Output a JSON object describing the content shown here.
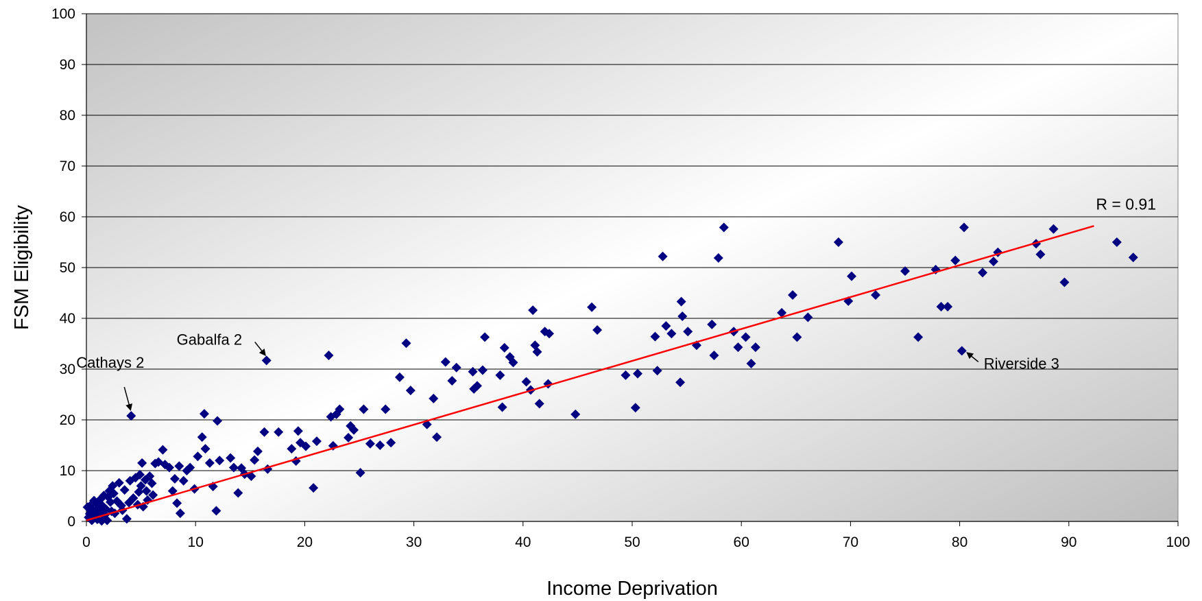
{
  "chart_data": {
    "type": "scatter",
    "title": "",
    "xlabel": "Income Deprivation",
    "ylabel": "FSM Eligibility",
    "xlim": [
      0,
      100
    ],
    "ylim": [
      0,
      100
    ],
    "xticks": [
      "0",
      "10",
      "20",
      "30",
      "40",
      "50",
      "60",
      "70",
      "80",
      "90",
      "100"
    ],
    "yticks": [
      "0",
      "10",
      "20",
      "30",
      "40",
      "50",
      "60",
      "70",
      "80",
      "90",
      "100"
    ],
    "grid": "horizontal",
    "marker_color": "#000080",
    "trendline_color": "#ff0000",
    "trendline": {
      "x": [
        0,
        92.3
      ],
      "y": [
        0.2,
        58.2
      ],
      "label": "R = 0.91"
    },
    "annotations": [
      {
        "text": "Cathays 2",
        "x": 4.1,
        "y": 20.8
      },
      {
        "text": "Gabalfa 2",
        "x": 16.5,
        "y": 31.7
      },
      {
        "text": "Riverside 3",
        "x": 80.2,
        "y": 33.6
      }
    ],
    "points": [
      [
        0.1,
        2.8
      ],
      [
        0.2,
        0.8
      ],
      [
        0.3,
        1.5
      ],
      [
        0.4,
        3.2
      ],
      [
        0.5,
        0.2
      ],
      [
        0.6,
        2.2
      ],
      [
        0.7,
        4.1
      ],
      [
        0.8,
        1.0
      ],
      [
        0.9,
        3.5
      ],
      [
        1.0,
        0.4
      ],
      [
        1.1,
        2.6
      ],
      [
        1.2,
        1.8
      ],
      [
        1.3,
        4.4
      ],
      [
        1.4,
        0.1
      ],
      [
        1.5,
        3.0
      ],
      [
        1.6,
        5.1
      ],
      [
        1.7,
        1.3
      ],
      [
        1.8,
        2.4
      ],
      [
        1.9,
        0.2
      ],
      [
        2.0,
        4.8
      ],
      [
        2.1,
        6.0
      ],
      [
        2.2,
        3.8
      ],
      [
        2.3,
        2.0
      ],
      [
        2.4,
        7.0
      ],
      [
        2.5,
        5.5
      ],
      [
        2.6,
        1.6
      ],
      [
        2.8,
        4.0
      ],
      [
        3.0,
        7.6
      ],
      [
        3.2,
        3.1
      ],
      [
        3.3,
        2.2
      ],
      [
        3.5,
        6.2
      ],
      [
        3.7,
        0.5
      ],
      [
        3.9,
        3.7
      ],
      [
        4.0,
        8.0
      ],
      [
        4.1,
        20.8
      ],
      [
        4.3,
        4.6
      ],
      [
        4.5,
        8.6
      ],
      [
        4.7,
        3.3
      ],
      [
        4.8,
        5.8
      ],
      [
        4.9,
        9.2
      ],
      [
        5.0,
        7.0
      ],
      [
        5.1,
        11.5
      ],
      [
        5.2,
        2.9
      ],
      [
        5.4,
        8.2
      ],
      [
        5.5,
        6.0
      ],
      [
        5.6,
        4.2
      ],
      [
        5.8,
        8.9
      ],
      [
        6.0,
        7.5
      ],
      [
        6.1,
        5.2
      ],
      [
        6.3,
        11.4
      ],
      [
        6.6,
        11.7
      ],
      [
        7.0,
        14.1
      ],
      [
        7.2,
        11.2
      ],
      [
        7.6,
        10.6
      ],
      [
        7.9,
        6.0
      ],
      [
        8.1,
        8.4
      ],
      [
        8.3,
        3.6
      ],
      [
        8.5,
        10.9
      ],
      [
        8.6,
        1.6
      ],
      [
        8.9,
        8.0
      ],
      [
        9.2,
        10.0
      ],
      [
        9.5,
        10.6
      ],
      [
        9.9,
        6.4
      ],
      [
        10.2,
        12.8
      ],
      [
        10.6,
        16.6
      ],
      [
        10.8,
        21.2
      ],
      [
        10.9,
        14.3
      ],
      [
        11.3,
        11.5
      ],
      [
        11.6,
        6.9
      ],
      [
        11.9,
        2.1
      ],
      [
        12.0,
        19.8
      ],
      [
        12.2,
        12.0
      ],
      [
        13.2,
        12.5
      ],
      [
        13.5,
        10.6
      ],
      [
        13.9,
        5.6
      ],
      [
        14.2,
        10.5
      ],
      [
        14.5,
        9.3
      ],
      [
        15.1,
        8.9
      ],
      [
        15.4,
        12.1
      ],
      [
        15.7,
        13.8
      ],
      [
        16.3,
        17.6
      ],
      [
        16.5,
        31.7
      ],
      [
        16.6,
        10.3
      ],
      [
        17.6,
        17.6
      ],
      [
        18.8,
        14.3
      ],
      [
        19.2,
        11.9
      ],
      [
        19.4,
        17.8
      ],
      [
        19.6,
        15.5
      ],
      [
        20.1,
        14.8
      ],
      [
        20.8,
        6.6
      ],
      [
        21.1,
        15.8
      ],
      [
        22.2,
        32.7
      ],
      [
        22.4,
        20.6
      ],
      [
        22.6,
        14.9
      ],
      [
        22.9,
        21.1
      ],
      [
        23.2,
        22.1
      ],
      [
        24.0,
        16.5
      ],
      [
        24.2,
        18.8
      ],
      [
        24.5,
        18.0
      ],
      [
        25.1,
        9.6
      ],
      [
        25.4,
        22.1
      ],
      [
        26.0,
        15.3
      ],
      [
        26.9,
        15.0
      ],
      [
        27.4,
        22.1
      ],
      [
        27.9,
        15.5
      ],
      [
        28.7,
        28.4
      ],
      [
        29.3,
        35.1
      ],
      [
        29.7,
        25.8
      ],
      [
        31.2,
        19.1
      ],
      [
        31.8,
        24.2
      ],
      [
        32.1,
        16.6
      ],
      [
        32.9,
        31.4
      ],
      [
        33.5,
        27.7
      ],
      [
        33.9,
        30.3
      ],
      [
        35.4,
        29.5
      ],
      [
        35.5,
        26.1
      ],
      [
        35.8,
        26.7
      ],
      [
        36.3,
        29.8
      ],
      [
        36.5,
        36.3
      ],
      [
        37.9,
        28.8
      ],
      [
        38.1,
        22.5
      ],
      [
        38.3,
        34.2
      ],
      [
        38.8,
        32.4
      ],
      [
        39.1,
        31.3
      ],
      [
        40.3,
        27.5
      ],
      [
        40.7,
        25.9
      ],
      [
        40.9,
        41.6
      ],
      [
        41.1,
        34.7
      ],
      [
        41.3,
        33.4
      ],
      [
        41.5,
        23.2
      ],
      [
        42.0,
        37.4
      ],
      [
        42.3,
        27.1
      ],
      [
        42.4,
        37.0
      ],
      [
        44.8,
        21.1
      ],
      [
        46.3,
        42.2
      ],
      [
        46.8,
        37.7
      ],
      [
        49.4,
        28.8
      ],
      [
        50.3,
        22.4
      ],
      [
        50.5,
        29.1
      ],
      [
        52.1,
        36.4
      ],
      [
        52.3,
        29.7
      ],
      [
        52.8,
        52.2
      ],
      [
        53.1,
        38.5
      ],
      [
        53.6,
        37.0
      ],
      [
        54.4,
        27.4
      ],
      [
        54.5,
        43.3
      ],
      [
        54.6,
        40.4
      ],
      [
        55.1,
        37.4
      ],
      [
        55.9,
        34.7
      ],
      [
        57.3,
        38.8
      ],
      [
        57.5,
        32.7
      ],
      [
        57.9,
        51.9
      ],
      [
        58.4,
        57.9
      ],
      [
        59.3,
        37.4
      ],
      [
        59.7,
        34.3
      ],
      [
        60.4,
        36.3
      ],
      [
        60.9,
        31.1
      ],
      [
        61.3,
        34.3
      ],
      [
        63.7,
        41.1
      ],
      [
        64.7,
        44.6
      ],
      [
        65.1,
        36.3
      ],
      [
        66.1,
        40.2
      ],
      [
        68.9,
        55.0
      ],
      [
        69.8,
        43.4
      ],
      [
        70.1,
        48.3
      ],
      [
        72.3,
        44.6
      ],
      [
        75.0,
        49.3
      ],
      [
        76.2,
        36.3
      ],
      [
        77.8,
        49.6
      ],
      [
        78.3,
        42.3
      ],
      [
        78.9,
        42.3
      ],
      [
        79.6,
        51.4
      ],
      [
        80.2,
        33.6
      ],
      [
        80.4,
        57.9
      ],
      [
        82.1,
        49.0
      ],
      [
        83.1,
        51.2
      ],
      [
        83.5,
        53.0
      ],
      [
        87.0,
        54.7
      ],
      [
        87.4,
        52.6
      ],
      [
        88.6,
        57.6
      ],
      [
        89.6,
        47.1
      ],
      [
        94.4,
        55.0
      ],
      [
        95.9,
        52.0
      ]
    ]
  }
}
